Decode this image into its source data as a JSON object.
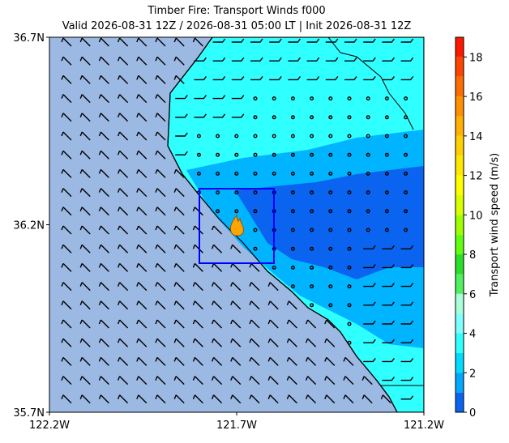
{
  "chart_data": {
    "type": "map",
    "title": "Timber Fire: Transport Winds f000",
    "subtitle": "Valid 2026-08-31 12Z / 2026-08-31 05:00 LT | Init 2026-08-31 12Z",
    "xlim": [
      -122.2,
      -121.2
    ],
    "xticks": [
      {
        "value": -122.2,
        "label": "122.2W"
      },
      {
        "value": -121.7,
        "label": "121.7W"
      },
      {
        "value": -121.2,
        "label": "121.2W"
      }
    ],
    "ylim": [
      35.7,
      36.7
    ],
    "yticks": [
      {
        "value": 35.7,
        "label": "35.7N"
      },
      {
        "value": 36.2,
        "label": "36.2N"
      },
      {
        "value": 36.7,
        "label": "36.7N"
      }
    ],
    "colorbar": {
      "label": "Transport wind speed (m/s)",
      "lim": [
        0,
        19
      ],
      "ticks": [
        0,
        2,
        4,
        6,
        8,
        10,
        12,
        14,
        16,
        18
      ],
      "bounds": [
        0,
        1,
        2,
        3,
        4,
        5,
        6,
        7,
        8,
        9,
        10,
        11,
        12,
        13,
        14,
        15,
        16,
        17,
        18,
        19
      ],
      "colors": [
        "#0a64f0",
        "#00a8ff",
        "#00dcff",
        "#30ffff",
        "#80ffff",
        "#a8ffd8",
        "#50f060",
        "#28e028",
        "#60ff10",
        "#a0ff00",
        "#d8ff00",
        "#ffff00",
        "#ffe800",
        "#ffd000",
        "#ffb000",
        "#ff9000",
        "#ff6c00",
        "#ff4400",
        "#ff1800"
      ]
    }
  }
}
